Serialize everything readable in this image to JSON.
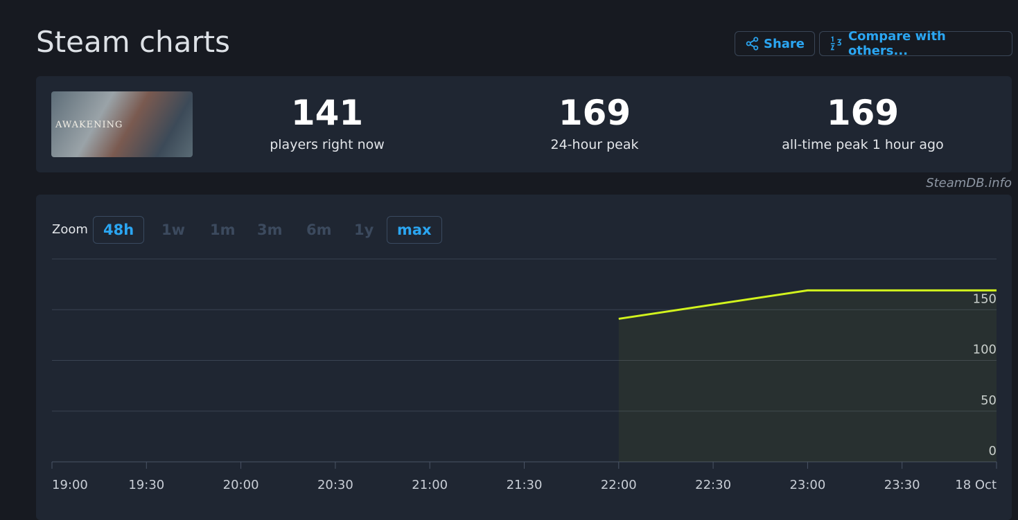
{
  "header": {
    "title": "Steam charts",
    "share": "Share",
    "compare": "Compare with others..."
  },
  "game": {
    "capsule_text": "AWAKENING"
  },
  "stats": [
    {
      "value": 141,
      "label": "players right now"
    },
    {
      "value": 169,
      "label": "24-hour peak"
    },
    {
      "value": 169,
      "label": "all-time peak 1 hour ago"
    }
  ],
  "credit": "SteamDB.info",
  "zoom": {
    "label": "Zoom",
    "options": [
      "48h",
      "1w",
      "1m",
      "3m",
      "6m",
      "1y",
      "max"
    ],
    "active": [
      "48h",
      "max"
    ]
  },
  "chart_data": {
    "type": "line",
    "color": "#d2f31d",
    "x": [
      22,
      23,
      24
    ],
    "values": [
      141,
      169,
      169
    ],
    "xlim": [
      19,
      24
    ],
    "xticks": [
      {
        "value": 19,
        "label": "19:00"
      },
      {
        "value": 19.5,
        "label": "19:30"
      },
      {
        "value": 20,
        "label": "20:00"
      },
      {
        "value": 20.5,
        "label": "20:30"
      },
      {
        "value": 21,
        "label": "21:00"
      },
      {
        "value": 21.5,
        "label": "21:30"
      },
      {
        "value": 22,
        "label": "22:00"
      },
      {
        "value": 22.5,
        "label": "22:30"
      },
      {
        "value": 23,
        "label": "23:00"
      },
      {
        "value": 23.5,
        "label": "23:30"
      },
      {
        "value": 24,
        "label": "18 Oct"
      }
    ],
    "ylim": [
      0,
      200
    ],
    "yticks": [
      0,
      50,
      100,
      150
    ],
    "grid": true
  }
}
